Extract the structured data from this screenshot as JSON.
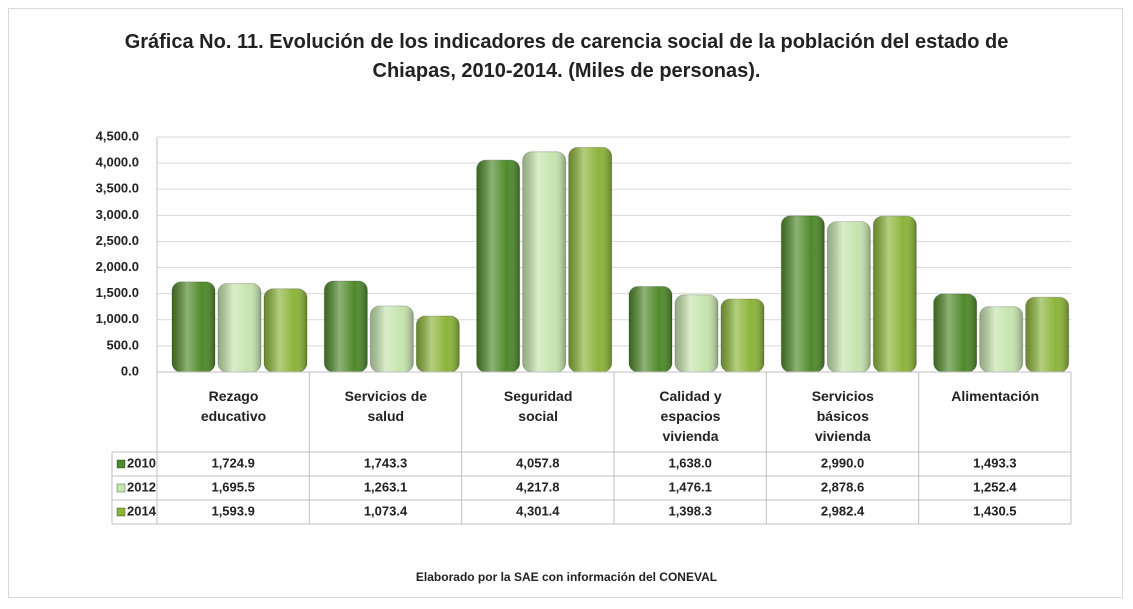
{
  "chart_data": {
    "type": "bar",
    "title": "Gráfica No. 11. Evolución de los indicadores de carencia social de la población del estado de Chiapas, 2010-2014. (Miles de personas).",
    "note": "Elaborado por la SAE con información del CONEVAL",
    "categories": [
      "Rezago educativo",
      "Servicios de salud",
      "Seguridad social",
      "Calidad y espacios vivienda",
      "Servicios básicos vivienda",
      "Alimentación"
    ],
    "series": [
      {
        "name": "2010",
        "color": "#4f8a2b",
        "values": [
          1724.9,
          1743.3,
          4057.8,
          1638.0,
          2990.0,
          1493.3
        ],
        "value_labels": [
          "1,724.9",
          "1,743.3",
          "4,057.8",
          "1,638.0",
          "2,990.0",
          "1,493.3"
        ]
      },
      {
        "name": "2012",
        "color": "#c6e4ae",
        "values": [
          1695.5,
          1263.1,
          4217.8,
          1476.1,
          2878.6,
          1252.4
        ],
        "value_labels": [
          "1,695.5",
          "1,263.1",
          "4,217.8",
          "1,476.1",
          "2,878.6",
          "1,252.4"
        ]
      },
      {
        "name": "2014",
        "color": "#8cb43a",
        "values": [
          1593.9,
          1073.4,
          4301.4,
          1398.3,
          2982.4,
          1430.5
        ],
        "value_labels": [
          "1,593.9",
          "1,073.4",
          "4,301.4",
          "1,398.3",
          "2,982.4",
          "1,430.5"
        ]
      }
    ],
    "ylim": [
      0,
      4500
    ],
    "yticks": [
      {
        "value": 0,
        "label": "0.0"
      },
      {
        "value": 500,
        "label": "500.0"
      },
      {
        "value": 1000,
        "label": "1,000.0"
      },
      {
        "value": 1500,
        "label": "1,500.0"
      },
      {
        "value": 2000,
        "label": "2,000.0"
      },
      {
        "value": 2500,
        "label": "2,500.0"
      },
      {
        "value": 3000,
        "label": "3,000.0"
      },
      {
        "value": 3500,
        "label": "3,500.0"
      },
      {
        "value": 4000,
        "label": "4,000.0"
      },
      {
        "value": 4500,
        "label": "4,500.0"
      }
    ],
    "grid": true
  }
}
